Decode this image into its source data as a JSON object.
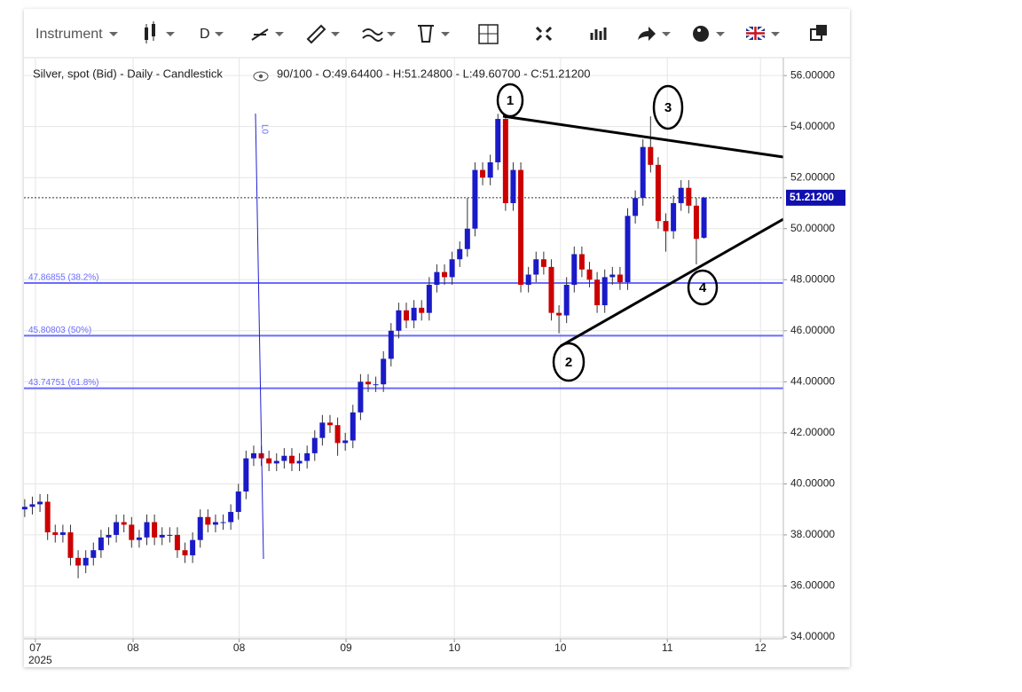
{
  "toolbar": {
    "instrument": "Instrument",
    "interval": "D"
  },
  "chart_data": {
    "type": "candlestick",
    "title": "Silver, spot (Bid) - Daily - Candlestick",
    "subtitle": "90/100 - O:49.64400 - H:51.24800 - L:49.60700 - C:51.21200",
    "up_color": "#1a1ac8",
    "down_color": "#cc0000",
    "open": [
      39.0,
      39.1,
      39.2,
      39.3,
      38.1,
      38.0,
      38.1,
      37.1,
      36.8,
      37.1,
      37.4,
      37.9,
      38.0,
      38.5,
      38.4,
      37.8,
      37.9,
      38.5,
      37.9,
      38.0,
      38.0,
      37.4,
      37.2,
      37.8,
      38.7,
      38.4,
      38.5,
      38.5,
      38.9,
      39.7,
      41.0,
      41.2,
      41.0,
      40.8,
      40.9,
      41.1,
      40.8,
      40.9,
      41.2,
      41.8,
      42.4,
      42.3,
      41.6,
      41.7,
      42.8,
      44.0,
      43.9,
      43.9,
      44.9,
      46.0,
      46.8,
      46.4,
      46.9,
      46.7,
      47.8,
      48.3,
      48.1,
      48.8,
      49.2,
      50.0,
      52.3,
      52.0,
      52.6,
      54.3,
      51.0,
      52.3,
      47.8,
      48.2,
      48.8,
      48.5,
      46.7,
      46.6,
      47.8,
      49.0,
      48.4,
      48.0,
      47.0,
      48.1,
      48.2,
      47.9,
      50.5,
      51.2,
      53.2,
      52.5,
      50.3,
      49.9,
      51.0,
      51.6,
      50.9,
      49.644
    ],
    "high": [
      39.4,
      39.5,
      39.6,
      39.6,
      38.4,
      38.4,
      38.4,
      37.4,
      37.4,
      37.7,
      38.2,
      38.3,
      38.8,
      38.8,
      38.7,
      38.2,
      38.8,
      38.8,
      38.3,
      38.3,
      38.3,
      37.7,
      38.1,
      39.0,
      39.0,
      38.8,
      38.8,
      39.2,
      40.0,
      41.3,
      41.5,
      41.5,
      41.3,
      41.2,
      41.4,
      41.4,
      41.2,
      41.5,
      42.1,
      42.7,
      42.7,
      42.6,
      42.0,
      43.1,
      44.3,
      44.3,
      44.2,
      45.2,
      46.3,
      47.1,
      47.1,
      47.2,
      47.2,
      48.1,
      48.6,
      48.6,
      49.1,
      49.5,
      51.2,
      52.6,
      52.6,
      52.9,
      54.5,
      54.5,
      52.6,
      52.6,
      48.5,
      49.1,
      49.1,
      48.8,
      47.0,
      48.1,
      49.3,
      49.3,
      48.7,
      48.3,
      48.4,
      48.5,
      48.5,
      50.8,
      51.5,
      53.5,
      54.4,
      52.8,
      50.6,
      51.3,
      51.9,
      51.9,
      51.2,
      51.248
    ],
    "low": [
      38.7,
      38.8,
      38.9,
      37.8,
      37.7,
      37.7,
      36.8,
      36.3,
      36.5,
      36.8,
      37.1,
      37.6,
      37.7,
      38.1,
      37.5,
      37.5,
      37.6,
      37.6,
      37.6,
      37.7,
      37.1,
      36.9,
      36.9,
      37.5,
      38.1,
      38.1,
      38.2,
      38.2,
      38.6,
      39.4,
      40.7,
      40.7,
      40.5,
      40.5,
      40.6,
      40.5,
      40.5,
      40.6,
      40.9,
      41.5,
      42.0,
      41.1,
      41.3,
      41.4,
      42.5,
      43.6,
      43.6,
      43.6,
      44.6,
      45.7,
      46.1,
      46.1,
      46.4,
      46.4,
      47.5,
      47.8,
      47.8,
      48.5,
      48.9,
      49.7,
      51.7,
      51.7,
      52.3,
      50.7,
      50.7,
      47.5,
      47.5,
      47.9,
      48.2,
      46.4,
      45.9,
      46.3,
      47.5,
      48.1,
      47.7,
      46.7,
      46.7,
      47.8,
      47.6,
      47.6,
      50.2,
      50.9,
      52.2,
      50.0,
      49.1,
      49.6,
      50.7,
      50.6,
      48.6,
      49.607
    ],
    "close": [
      39.1,
      39.2,
      39.3,
      38.1,
      38.0,
      38.1,
      37.1,
      36.8,
      37.1,
      37.4,
      37.9,
      38.0,
      38.5,
      38.4,
      37.8,
      37.9,
      38.5,
      37.9,
      38.0,
      38.0,
      37.4,
      37.2,
      37.8,
      38.7,
      38.4,
      38.5,
      38.5,
      38.9,
      39.7,
      41.0,
      41.2,
      41.0,
      40.8,
      40.9,
      41.1,
      40.8,
      40.9,
      41.2,
      41.8,
      42.4,
      42.3,
      41.6,
      41.7,
      42.8,
      44.0,
      43.9,
      43.9,
      44.9,
      46.0,
      46.8,
      46.4,
      46.9,
      46.7,
      47.8,
      48.3,
      48.1,
      48.8,
      49.2,
      50.0,
      52.3,
      52.0,
      52.6,
      54.3,
      51.0,
      52.3,
      47.8,
      48.2,
      48.8,
      48.5,
      46.7,
      46.6,
      47.8,
      49.0,
      48.4,
      48.0,
      47.0,
      48.1,
      48.2,
      47.9,
      50.5,
      51.2,
      53.2,
      52.5,
      50.3,
      49.9,
      51.0,
      51.6,
      50.9,
      49.6,
      51.212
    ],
    "xlim": [
      -0.1,
      99.4
    ],
    "xticks": [
      {
        "value": 1.4,
        "label": "07"
      },
      {
        "value": 14.2,
        "label": "08"
      },
      {
        "value": 28.1,
        "label": "08"
      },
      {
        "value": 42.1,
        "label": "09"
      },
      {
        "value": 56.3,
        "label": "10"
      },
      {
        "value": 70.2,
        "label": "10"
      },
      {
        "value": 84.2,
        "label": "11"
      },
      {
        "value": 96.4,
        "label": "12"
      }
    ],
    "year_label": "2025",
    "ylim": [
      33.93,
      56.7
    ],
    "yticks": [
      {
        "value": 34,
        "label": "34.00000"
      },
      {
        "value": 36,
        "label": "36.00000"
      },
      {
        "value": 38,
        "label": "38.00000"
      },
      {
        "value": 40,
        "label": "40.00000"
      },
      {
        "value": 42,
        "label": "42.00000"
      },
      {
        "value": 44,
        "label": "44.00000"
      },
      {
        "value": 46,
        "label": "46.00000"
      },
      {
        "value": 48,
        "label": "48.00000"
      },
      {
        "value": 50,
        "label": "50.00000"
      },
      {
        "value": 52,
        "label": "52.00000"
      },
      {
        "value": 54,
        "label": "54.00000"
      },
      {
        "value": 56,
        "label": "56.00000"
      }
    ],
    "grid": true,
    "fib_levels": [
      {
        "value": 47.86855,
        "label": "47.86855 (38.2%)"
      },
      {
        "value": 45.80803,
        "label": "45.80803 (50%)"
      },
      {
        "value": 43.74751,
        "label": "43.74751 (61.8%)"
      }
    ],
    "fib_color": "#6b6bff",
    "last_price": {
      "value": 51.212,
      "label": "51.21200"
    },
    "drawing_label": "L0",
    "annotations": [
      "1",
      "2",
      "3",
      "4"
    ]
  }
}
